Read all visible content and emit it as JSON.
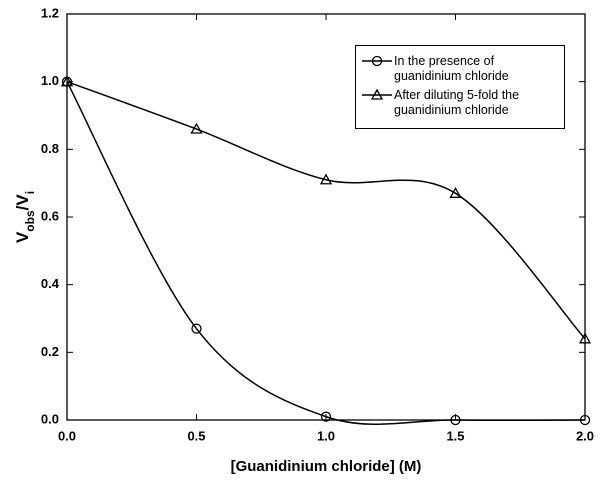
{
  "chart_data": {
    "type": "line",
    "xlabel": "[Guanidinium chloride] (M)",
    "ylabel_parts": [
      {
        "text": "V",
        "sub": false
      },
      {
        "text": "obs",
        "sub": true
      },
      {
        "text": "/V",
        "sub": false
      },
      {
        "text": "i",
        "sub": true
      }
    ],
    "x": [
      0,
      0.5,
      1.0,
      1.5,
      2.0
    ],
    "series": [
      {
        "name": "In the presence of guanidinium chloride",
        "color": "#000000",
        "marker": "circle",
        "values": [
          1.0,
          0.27,
          0.01,
          0.0,
          0.0
        ]
      },
      {
        "name": "After diluting 5-fold the guanidinium chloride",
        "color": "#000000",
        "marker": "triangle",
        "values": [
          1.0,
          0.86,
          0.71,
          0.67,
          0.24
        ]
      }
    ],
    "xlim": [
      0,
      2.0
    ],
    "ylim": [
      0,
      1.2
    ],
    "xticks": [
      {
        "value": 0,
        "label": "0.0"
      },
      {
        "value": 0.5,
        "label": "0.5"
      },
      {
        "value": 1.0,
        "label": "1.0"
      },
      {
        "value": 1.5,
        "label": "1.5"
      },
      {
        "value": 2.0,
        "label": "2.0"
      }
    ],
    "yticks": [
      {
        "value": 0,
        "label": "0.0"
      },
      {
        "value": 0.2,
        "label": "0.2"
      },
      {
        "value": 0.4,
        "label": "0.4"
      },
      {
        "value": 0.6,
        "label": "0.6"
      },
      {
        "value": 0.8,
        "label": "0.8"
      },
      {
        "value": 1.0,
        "label": "1.0"
      },
      {
        "value": 1.2,
        "label": "1.2"
      }
    ],
    "smooth": true,
    "legend": "upper-right"
  }
}
